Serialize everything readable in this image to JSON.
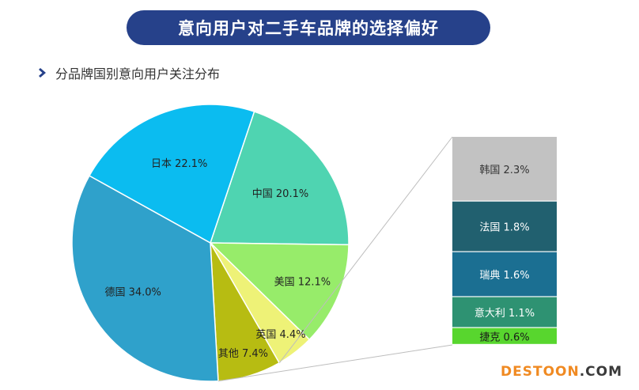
{
  "header": {
    "title": "意向用户对二手车品牌的选择偏好"
  },
  "subtitle": {
    "icon": "chevron-right-icon",
    "text": "分品牌国别意向用户关注分布"
  },
  "watermark": {
    "main": "DESTOON",
    "suffix": ".COM"
  },
  "colors": {
    "title_bg": "#26418a",
    "chevron": "#26418a",
    "connector": "#bdbdbd"
  },
  "chart_data": [
    {
      "type": "pie",
      "slices": [
        {
          "label": "中国 20.1%",
          "value": 20.1,
          "color": "#4fd4b1"
        },
        {
          "label": "美国 12.1%",
          "value": 12.1,
          "color": "#97ec6a"
        },
        {
          "label": "英国 4.4%",
          "value": 4.4,
          "color": "#eef277"
        },
        {
          "label": "其他 7.4%",
          "value": 7.4,
          "color": "#b7bc12"
        },
        {
          "label": "德国 34.0%",
          "value": 34.0,
          "color": "#2fa1cb"
        },
        {
          "label": "日本 22.1%",
          "value": 22.1,
          "color": "#0bbcf0"
        }
      ]
    },
    {
      "type": "bar",
      "stacked": true,
      "breakdown_of": "其他 7.4%",
      "segments": [
        {
          "label": "韩国 2.3%",
          "value": 2.3,
          "color": "#c2c2c2"
        },
        {
          "label": "法国 1.8%",
          "value": 1.8,
          "color": "#21606f"
        },
        {
          "label": "瑞典 1.6%",
          "value": 1.6,
          "color": "#1b6f92"
        },
        {
          "label": "意大利 1.1%",
          "value": 1.1,
          "color": "#2e9272"
        },
        {
          "label": "捷克 0.6%",
          "value": 0.6,
          "color": "#58d62e"
        }
      ]
    }
  ]
}
